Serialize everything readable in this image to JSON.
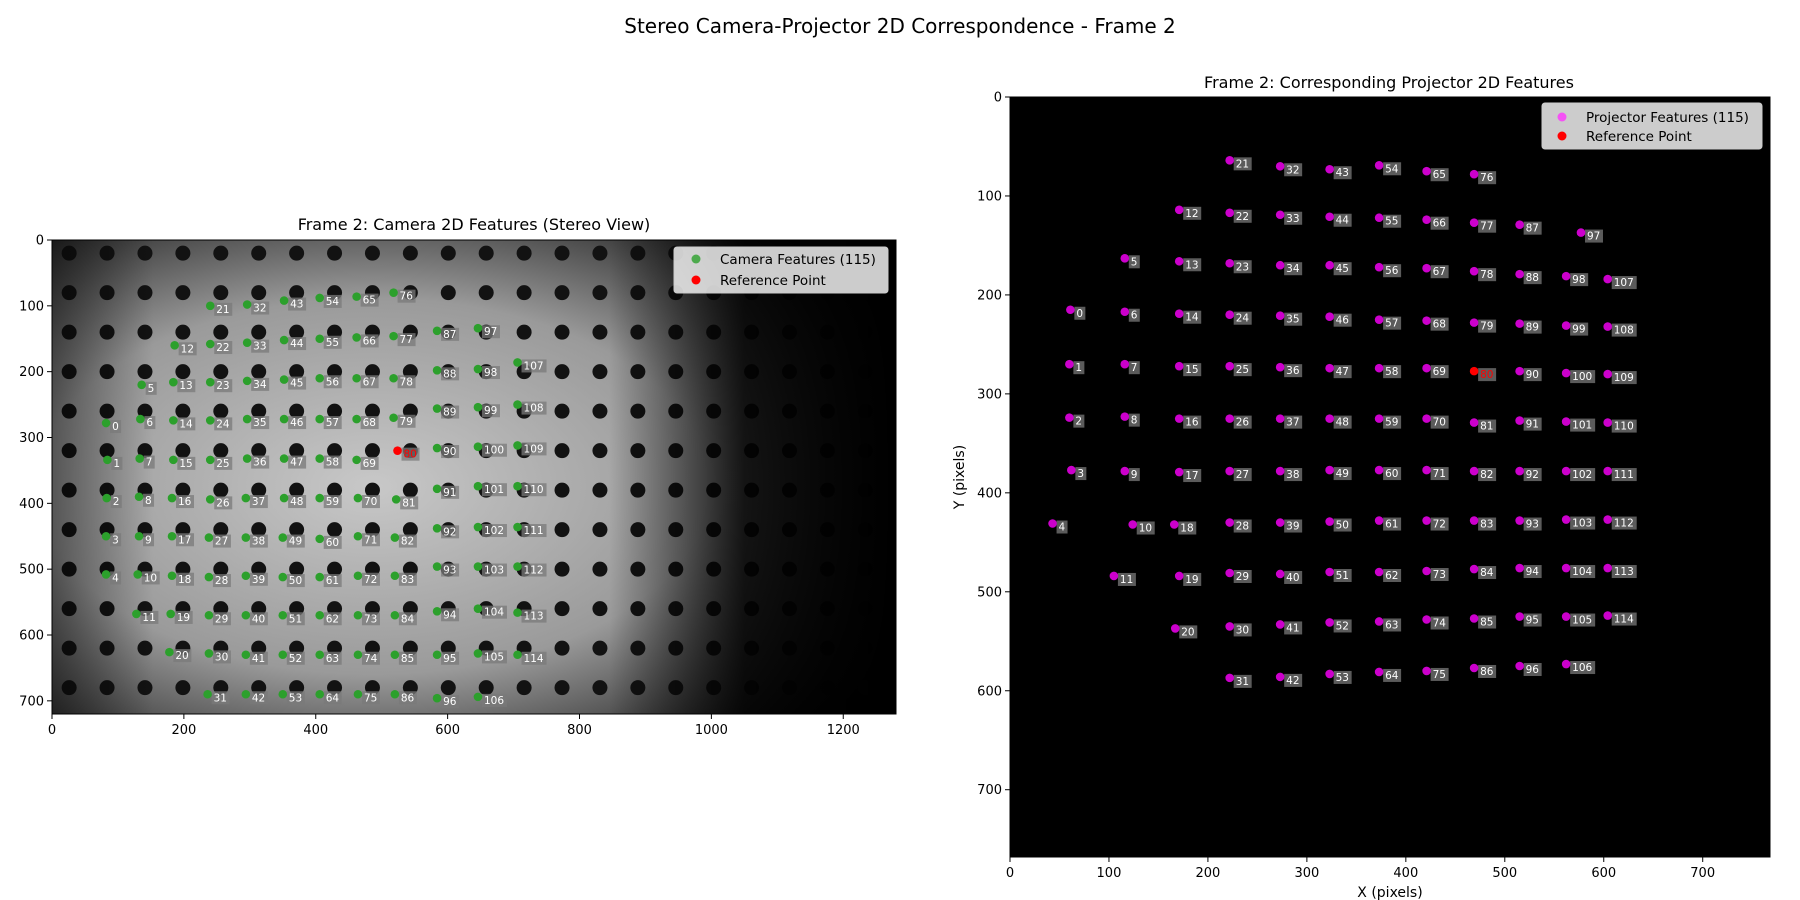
{
  "figure": {
    "suptitle": "Stereo Camera-Projector 2D Correspondence - Frame 2"
  },
  "colors": {
    "camera_marker": "#2ca02c",
    "projector_marker": "#cc00cc",
    "reference_marker": "#ff0000",
    "projector_background": "#000000"
  },
  "chart_data": [
    {
      "type": "scatter",
      "title": "Frame 2: Camera 2D Features (Stereo View)",
      "xlabel": "",
      "ylabel": "",
      "xlim": [
        0,
        1280
      ],
      "ylim": [
        720,
        0
      ],
      "xticks": [
        0,
        200,
        400,
        600,
        800,
        1000,
        1200
      ],
      "yticks": [
        0,
        100,
        200,
        300,
        400,
        500,
        600,
        700
      ],
      "grid": false,
      "legend_position": "top-right",
      "legend": [
        "Camera Features (115)",
        "Reference Point"
      ],
      "background": "grayscale camera image of dot pattern",
      "series": [
        {
          "name": "Camera Features (115)",
          "labels": [
            "0",
            "1",
            "2",
            "3",
            "4",
            "5",
            "6",
            "7",
            "8",
            "9",
            "10",
            "11",
            "12",
            "13",
            "14",
            "15",
            "16",
            "17",
            "18",
            "19",
            "20",
            "21",
            "22",
            "23",
            "24",
            "25",
            "26",
            "27",
            "28",
            "29",
            "30",
            "31",
            "32",
            "33",
            "34",
            "35",
            "36",
            "37",
            "38",
            "39",
            "40",
            "41",
            "42",
            "43",
            "44",
            "45",
            "46",
            "47",
            "48",
            "49",
            "50",
            "51",
            "52",
            "53",
            "54",
            "55",
            "56",
            "57",
            "58",
            "59",
            "60",
            "61",
            "62",
            "63",
            "64",
            "65",
            "66",
            "67",
            "68",
            "69",
            "70",
            "71",
            "72",
            "73",
            "74",
            "75",
            "76",
            "77",
            "78",
            "79",
            "81",
            "82",
            "83",
            "84",
            "85",
            "86",
            "87",
            "88",
            "89",
            "90",
            "91",
            "92",
            "93",
            "94",
            "95",
            "96",
            "97",
            "98",
            "99",
            "100",
            "101",
            "102",
            "103",
            "104",
            "105",
            "106",
            "107",
            "108",
            "109",
            "110",
            "111",
            "112",
            "113",
            "114"
          ],
          "x": [
            82,
            84,
            83,
            82,
            82,
            136,
            134,
            133,
            132,
            132,
            130,
            128,
            186,
            184,
            184,
            184,
            182,
            182,
            182,
            180,
            178,
            240,
            240,
            240,
            240,
            240,
            240,
            238,
            238,
            238,
            238,
            236,
            296,
            296,
            296,
            296,
            296,
            294,
            294,
            294,
            294,
            294,
            294,
            352,
            352,
            352,
            352,
            352,
            352,
            350,
            350,
            350,
            350,
            350,
            406,
            406,
            406,
            406,
            406,
            406,
            406,
            406,
            406,
            406,
            406,
            462,
            462,
            462,
            462,
            462,
            464,
            464,
            464,
            464,
            464,
            464,
            518,
            518,
            518,
            518,
            522,
            520,
            520,
            520,
            520,
            520,
            584,
            584,
            584,
            584,
            584,
            584,
            584,
            584,
            584,
            584,
            646,
            646,
            646,
            646,
            646,
            646,
            646,
            646,
            646,
            646,
            706,
            706,
            706,
            706,
            706,
            706,
            706,
            706
          ],
          "y": [
            278,
            334,
            392,
            450,
            508,
            220,
            272,
            332,
            390,
            450,
            508,
            568,
            160,
            216,
            274,
            334,
            392,
            450,
            510,
            568,
            626,
            100,
            158,
            216,
            274,
            334,
            394,
            452,
            512,
            570,
            628,
            690,
            98,
            156,
            214,
            272,
            332,
            392,
            452,
            510,
            570,
            630,
            690,
            92,
            152,
            212,
            272,
            332,
            392,
            452,
            512,
            570,
            630,
            690,
            88,
            150,
            210,
            272,
            332,
            392,
            454,
            512,
            570,
            630,
            690,
            86,
            148,
            210,
            272,
            334,
            392,
            450,
            510,
            570,
            630,
            690,
            80,
            146,
            210,
            270,
            394,
            452,
            510,
            570,
            630,
            690,
            138,
            198,
            256,
            316,
            378,
            438,
            496,
            564,
            630,
            696,
            134,
            196,
            254,
            314,
            374,
            436,
            496,
            560,
            628,
            694,
            186,
            250,
            312,
            374,
            436,
            496,
            566,
            630
          ]
        },
        {
          "name": "Reference Point",
          "labels": [
            "80"
          ],
          "x": [
            524
          ],
          "y": [
            320
          ]
        }
      ]
    },
    {
      "type": "scatter",
      "title": "Frame 2: Corresponding Projector 2D Features",
      "xlabel": "X (pixels)",
      "ylabel": "Y (pixels)",
      "xlim": [
        0,
        768
      ],
      "ylim": [
        768,
        0
      ],
      "xticks": [
        0,
        100,
        200,
        300,
        400,
        500,
        600,
        700
      ],
      "yticks": [
        0,
        100,
        200,
        300,
        400,
        500,
        600,
        700
      ],
      "grid": false,
      "legend_position": "top-right",
      "legend": [
        "Projector Features (115)",
        "Reference Point"
      ],
      "series": [
        {
          "name": "Projector Features (115)",
          "labels": [
            "0",
            "1",
            "2",
            "3",
            "4",
            "5",
            "6",
            "7",
            "8",
            "9",
            "10",
            "11",
            "12",
            "13",
            "14",
            "15",
            "16",
            "17",
            "18",
            "19",
            "20",
            "21",
            "22",
            "23",
            "24",
            "25",
            "26",
            "27",
            "28",
            "29",
            "30",
            "31",
            "32",
            "33",
            "34",
            "35",
            "36",
            "37",
            "38",
            "39",
            "40",
            "41",
            "42",
            "43",
            "44",
            "45",
            "46",
            "47",
            "48",
            "49",
            "50",
            "51",
            "52",
            "53",
            "54",
            "55",
            "56",
            "57",
            "58",
            "59",
            "60",
            "61",
            "62",
            "63",
            "64",
            "65",
            "66",
            "67",
            "68",
            "69",
            "70",
            "71",
            "72",
            "73",
            "74",
            "75",
            "76",
            "77",
            "78",
            "79",
            "81",
            "82",
            "83",
            "84",
            "85",
            "86",
            "87",
            "88",
            "89",
            "90",
            "91",
            "92",
            "93",
            "94",
            "95",
            "96",
            "97",
            "98",
            "99",
            "100",
            "101",
            "102",
            "103",
            "104",
            "105",
            "106",
            "107",
            "108",
            "109",
            "110",
            "111",
            "112",
            "113",
            "114"
          ],
          "x": [
            61,
            60,
            60,
            62,
            43,
            116,
            116,
            116,
            116,
            116,
            124,
            105,
            171,
            171,
            171,
            171,
            171,
            171,
            166,
            171,
            167,
            222,
            222,
            222,
            222,
            222,
            222,
            222,
            222,
            222,
            222,
            222,
            273,
            273,
            273,
            273,
            273,
            273,
            273,
            273,
            273,
            273,
            273,
            323,
            323,
            323,
            323,
            323,
            323,
            323,
            323,
            323,
            323,
            323,
            373,
            373,
            373,
            373,
            373,
            373,
            373,
            373,
            373,
            373,
            373,
            421,
            421,
            421,
            421,
            421,
            421,
            421,
            421,
            421,
            421,
            421,
            469,
            469,
            469,
            469,
            469,
            469,
            469,
            469,
            469,
            469,
            515,
            515,
            515,
            515,
            515,
            515,
            515,
            515,
            515,
            515,
            577,
            562,
            562,
            562,
            562,
            562,
            562,
            562,
            562,
            562,
            604,
            604,
            604,
            604,
            604,
            604,
            604,
            604
          ],
          "y": [
            215,
            270,
            324,
            377,
            431,
            163,
            217,
            270,
            323,
            378,
            432,
            484,
            114,
            166,
            219,
            272,
            325,
            379,
            432,
            484,
            537,
            64,
            117,
            168,
            220,
            272,
            325,
            378,
            430,
            481,
            535,
            587,
            70,
            119,
            170,
            221,
            273,
            325,
            378,
            430,
            482,
            533,
            586,
            73,
            121,
            170,
            222,
            274,
            325,
            377,
            429,
            480,
            531,
            583,
            69,
            122,
            172,
            225,
            274,
            325,
            377,
            428,
            480,
            530,
            581,
            75,
            124,
            173,
            226,
            274,
            325,
            377,
            428,
            479,
            528,
            580,
            78,
            127,
            176,
            228,
            329,
            378,
            428,
            477,
            527,
            577,
            129,
            179,
            229,
            277,
            327,
            378,
            428,
            476,
            525,
            575,
            137,
            181,
            231,
            279,
            328,
            378,
            427,
            476,
            525,
            573,
            184,
            232,
            280,
            329,
            378,
            427,
            476,
            524
          ]
        },
        {
          "name": "Reference Point",
          "labels": [
            "80"
          ],
          "x": [
            469
          ],
          "y": [
            277
          ]
        }
      ]
    }
  ]
}
